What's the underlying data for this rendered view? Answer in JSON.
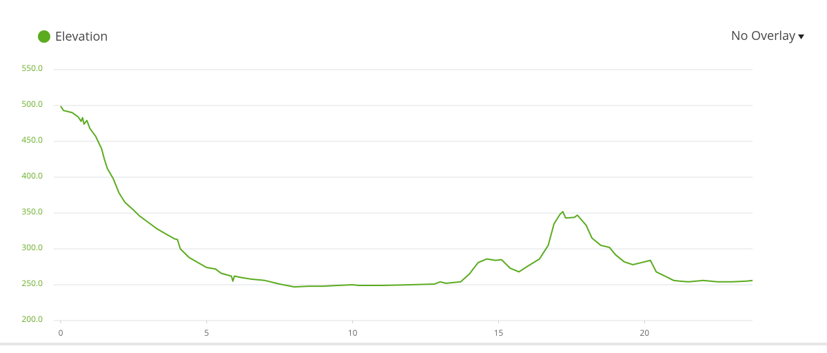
{
  "chart_data": {
    "type": "line",
    "legend": "Elevation",
    "overlay_menu": "No Overlay",
    "x": [
      0,
      0.1,
      0.4,
      0.6,
      0.7,
      0.75,
      0.8,
      0.9,
      1.0,
      1.2,
      1.4,
      1.5,
      1.6,
      1.8,
      2.0,
      2.2,
      2.5,
      2.7,
      3.0,
      3.3,
      3.6,
      3.9,
      4.0,
      4.1,
      4.4,
      4.7,
      5.0,
      5.3,
      5.5,
      5.85,
      5.9,
      5.95,
      6.2,
      6.5,
      7.0,
      7.5,
      8.0,
      8.5,
      9.0,
      9.5,
      10.0,
      10.2,
      11.0,
      12.0,
      12.8,
      13.0,
      13.2,
      13.7,
      14.0,
      14.3,
      14.6,
      14.9,
      15.1,
      15.4,
      15.7,
      16.0,
      16.4,
      16.7,
      16.9,
      17.1,
      17.2,
      17.3,
      17.6,
      17.7,
      18.0,
      18.2,
      18.5,
      18.8,
      19.0,
      19.3,
      19.6,
      19.9,
      20.2,
      20.4,
      20.7,
      21.0,
      21.2,
      21.5,
      22.0,
      22.5,
      23.0,
      23.5,
      23.7
    ],
    "series": [
      {
        "name": "Elevation",
        "color": "#5aab1e",
        "values": [
          499,
          493,
          490,
          484,
          478,
          483,
          474,
          479,
          468,
          457,
          440,
          425,
          412,
          398,
          378,
          365,
          354,
          346,
          337,
          328,
          321,
          314,
          313,
          300,
          288,
          281,
          274,
          272,
          266,
          262,
          255,
          262,
          260,
          258,
          256,
          251,
          247,
          248,
          248,
          249,
          250,
          249,
          249,
          250,
          251,
          254,
          252,
          254,
          265,
          281,
          286,
          284,
          285,
          273,
          268,
          276,
          286,
          305,
          335,
          348,
          352,
          343,
          344,
          347,
          333,
          315,
          305,
          302,
          292,
          282,
          278,
          281,
          284,
          268,
          262,
          256,
          255,
          254,
          256,
          254,
          254,
          255,
          256
        ]
      }
    ],
    "xlim": [
      0,
      23.7
    ],
    "ylim": [
      200,
      550
    ],
    "xticks": [
      0,
      5,
      10,
      15,
      20
    ],
    "yticks": [
      {
        "value": 200,
        "label": "200.0"
      },
      {
        "value": 250,
        "label": "250.0"
      },
      {
        "value": 300,
        "label": "300.0"
      },
      {
        "value": 350,
        "label": "350.0"
      },
      {
        "value": 400,
        "label": "400.0"
      },
      {
        "value": 450,
        "label": "450.0"
      },
      {
        "value": 500,
        "label": "500.0"
      },
      {
        "value": 550,
        "label": "550.0"
      }
    ],
    "grid": true
  }
}
